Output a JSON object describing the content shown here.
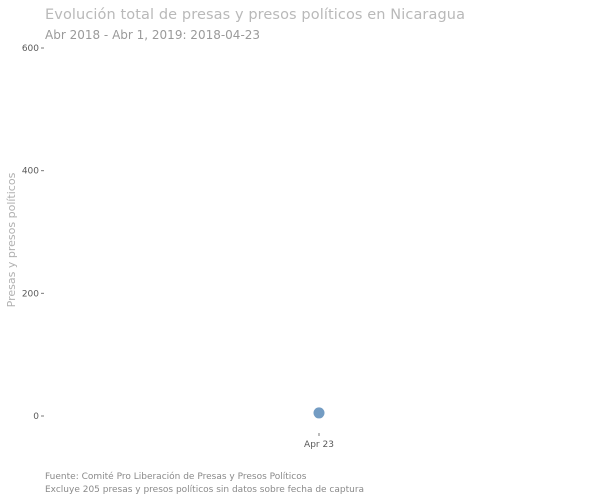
{
  "header": {
    "title": "Evolución total de presas y presos políticos en Nicaragua",
    "subtitle": "Abr 2018 - Abr 1, 2019: 2018-04-23"
  },
  "notes": {
    "source": "Fuente: Comité Pro Liberación de Presas y Presos Políticos",
    "excluded": "Excluye 205 presas y presos políticos sin datos sobre fecha de captura"
  },
  "chart_data": {
    "type": "scatter",
    "title": "Evolución total de presas y presos políticos en Nicaragua",
    "subtitle": "Abr 2018 - Abr 1, 2019: 2018-04-23",
    "xlabel": "",
    "ylabel": "Presas y presos políticos",
    "ylim": [
      0,
      600
    ],
    "y_ticks": [
      0,
      200,
      400,
      600
    ],
    "x_ticks": [
      "Apr 23"
    ],
    "grid": false,
    "legend": "none",
    "point_color": "#6b97c0",
    "points": [
      {
        "x": "2018-04-23",
        "x_label": "Apr 23",
        "y": 5
      }
    ]
  }
}
